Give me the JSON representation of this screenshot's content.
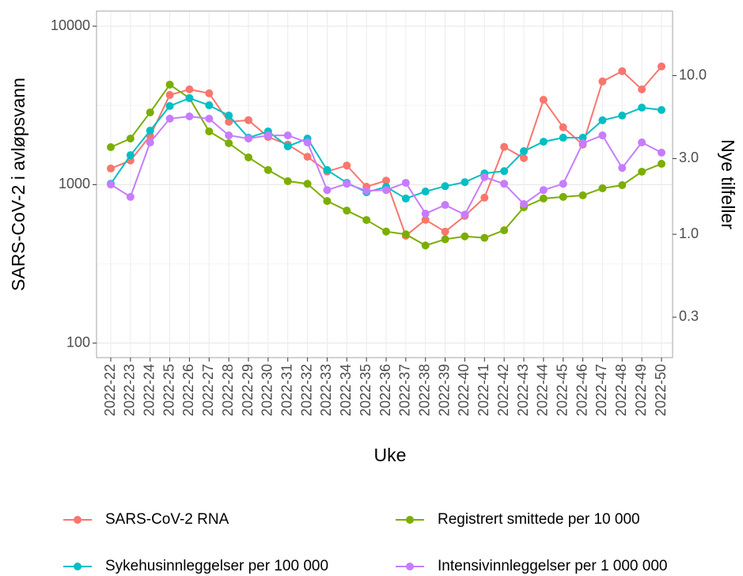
{
  "chart_data": {
    "type": "line",
    "x_label": "Uke",
    "y_label": "SARS-CoV-2 i avløpsvann",
    "y2_label": "Nye tilfeller",
    "categories": [
      "2022-22",
      "2022-23",
      "2022-24",
      "2022-25",
      "2022-26",
      "2022-27",
      "2022-28",
      "2022-29",
      "2022-30",
      "2022-31",
      "2022-32",
      "2022-33",
      "2022-34",
      "2022-35",
      "2022-36",
      "2022-37",
      "2022-38",
      "2022-39",
      "2022-40",
      "2022-41",
      "2022-42",
      "2022-43",
      "2022-44",
      "2022-45",
      "2022-46",
      "2022-47",
      "2022-48",
      "2022-49",
      "2022-50"
    ],
    "y_scale": "log",
    "y2_scale": "log",
    "grid": true,
    "ylim": [
      81,
      12450
    ],
    "yticks": [
      100,
      1000,
      10000
    ],
    "y2lim": [
      0.167,
      25.5
    ],
    "y2ticks": [
      0.3,
      {
        "value": 1,
        "label": "1.0"
      },
      {
        "value": 3,
        "label": "3.0"
      },
      {
        "value": 10,
        "label": "10.0"
      }
    ],
    "series": [
      {
        "name": "SARS-CoV-2 RNA",
        "color": "#F8766D",
        "values": [
          1265,
          1420,
          2030,
          3680,
          3990,
          3770,
          2490,
          2550,
          2000,
          1790,
          1500,
          1210,
          1320,
          970,
          1060,
          476,
          600,
          505,
          635,
          828,
          1730,
          1470,
          3430,
          2300,
          1790,
          4480,
          5200,
          3990,
          5570
        ]
      },
      {
        "name": "Registrert smittede per 10 000",
        "color": "#7CAE00",
        "axis": "y2",
        "values": [
          3.54,
          4.01,
          5.86,
          8.77,
          7.21,
          4.45,
          3.75,
          3.05,
          2.54,
          2.16,
          2.08,
          1.62,
          1.41,
          1.23,
          1.04,
          1.0,
          0.85,
          0.93,
          0.97,
          0.95,
          1.06,
          1.48,
          1.68,
          1.72,
          1.76,
          1.95,
          2.04,
          2.48,
          2.78
        ]
      },
      {
        "name": "Sykehusinnleggelser per 100 000",
        "color": "#00BFC4",
        "axis": "y2",
        "values": [
          2.08,
          3.15,
          4.5,
          6.43,
          7.21,
          6.5,
          5.6,
          4.06,
          4.45,
          3.58,
          4.01,
          2.54,
          2.11,
          1.84,
          1.99,
          1.68,
          1.86,
          2.01,
          2.13,
          2.42,
          2.5,
          3.34,
          3.83,
          4.06,
          4.06,
          5.23,
          5.6,
          6.28,
          6.07
        ]
      },
      {
        "name": "Intensivinnleggelser per 1 000 000",
        "color": "#C77CFF",
        "axis": "y2",
        "values": [
          2.06,
          1.72,
          3.79,
          5.35,
          5.53,
          5.35,
          4.2,
          4.01,
          4.2,
          4.2,
          3.79,
          1.9,
          2.08,
          1.88,
          1.9,
          2.11,
          1.35,
          1.53,
          1.33,
          2.29,
          2.08,
          1.55,
          1.9,
          2.08,
          3.75,
          4.2,
          2.62,
          3.79,
          3.27
        ]
      }
    ]
  }
}
